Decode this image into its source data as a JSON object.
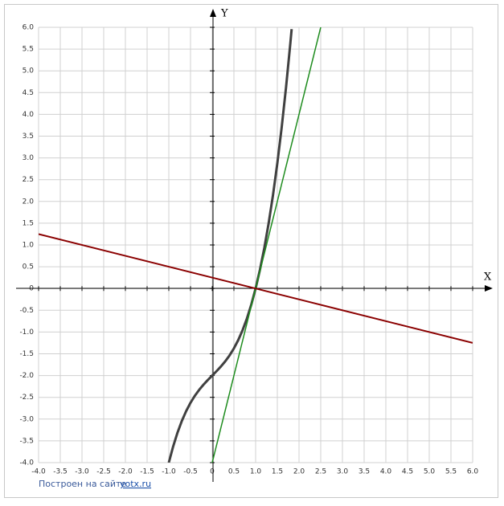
{
  "chart_data": {
    "type": "line",
    "x_label": "X",
    "y_label": "Y",
    "xlim": [
      -4,
      6
    ],
    "ylim": [
      -4,
      6
    ],
    "xticks": [
      {
        "value": -4,
        "label": "-4.0"
      },
      -3.5,
      {
        "value": -3,
        "label": "-3.0"
      },
      -2.5,
      {
        "value": -2,
        "label": "-2.0"
      },
      -1.5,
      {
        "value": -1,
        "label": "-1.0"
      },
      -0.5,
      0,
      0.5,
      {
        "value": 1,
        "label": "1.0"
      },
      1.5,
      {
        "value": 2,
        "label": "2.0"
      },
      2.5,
      {
        "value": 3,
        "label": "3.0"
      },
      3.5,
      {
        "value": 4,
        "label": "4.0"
      },
      4.5,
      {
        "value": 5,
        "label": "5.0"
      },
      5.5,
      {
        "value": 6,
        "label": "6.0"
      }
    ],
    "yticks": [
      {
        "value": -4,
        "label": "-4.0"
      },
      -3.5,
      {
        "value": -3,
        "label": "-3.0"
      },
      -2.5,
      {
        "value": -2,
        "label": "-2.0"
      },
      -1.5,
      {
        "value": -1,
        "label": "-1.0"
      },
      -0.5,
      0,
      0.5,
      {
        "value": 1,
        "label": "1.0"
      },
      1.5,
      {
        "value": 2,
        "label": "2.0"
      },
      2.5,
      {
        "value": 3,
        "label": "3.0"
      },
      3.5,
      {
        "value": 4,
        "label": "4.0"
      },
      4.5,
      {
        "value": 5,
        "label": "5.0"
      },
      5.5,
      {
        "value": 6,
        "label": "6.0"
      }
    ],
    "grid": true,
    "series": [
      {
        "color": "#404040",
        "x": [
          -1,
          -0.9,
          -0.8,
          -0.7,
          -0.6,
          -0.5,
          -0.4,
          -0.3,
          -0.2,
          -0.1,
          0,
          0.1,
          0.2,
          0.3,
          0.4,
          0.5,
          0.6,
          0.7,
          0.8,
          0.9,
          1,
          1.1,
          1.2,
          1.3,
          1.4,
          1.5,
          1.6,
          1.7,
          1.8,
          1.83
        ],
        "values": [
          -4,
          -3.629,
          -3.312,
          -3.043,
          -2.816,
          -2.625,
          -2.464,
          -2.327,
          -2.208,
          -2.101,
          -2,
          -1.899,
          -1.792,
          -1.673,
          -1.536,
          -1.375,
          -1.184,
          -0.957,
          -0.688,
          -0.371,
          0,
          0.431,
          0.928,
          1.497,
          2.144,
          2.875,
          3.696,
          4.613,
          5.632,
          5.958
        ]
      },
      {
        "color": "#1e8c1e",
        "x": [
          0,
          2.5
        ],
        "values": [
          -4,
          6
        ]
      },
      {
        "color": "#8b0000",
        "x": [
          -4,
          6
        ],
        "values": [
          1.25,
          -1.25
        ]
      }
    ]
  },
  "footer": {
    "text": "Построен на сайте",
    "link": "yotx.ru"
  }
}
